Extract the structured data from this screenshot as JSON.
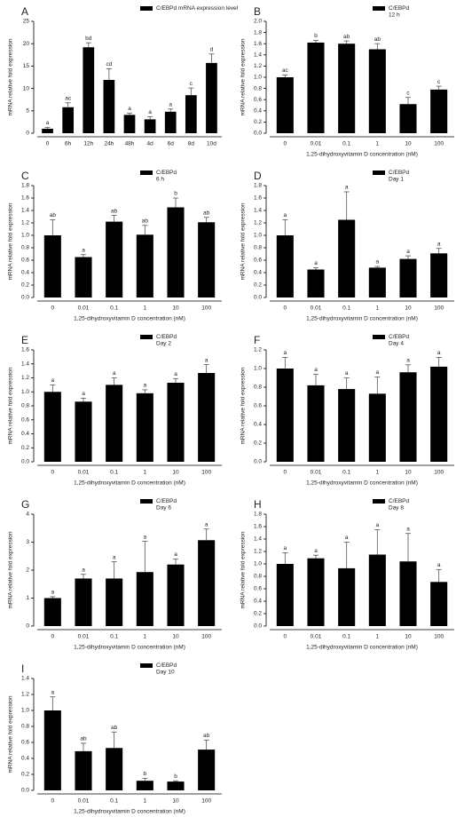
{
  "chart_data": [
    {
      "type": "bar",
      "panel_label": "A",
      "ylabel": "mRNA relative fold expression",
      "categories": [
        "0",
        "6h",
        "12h",
        "24h",
        "48h",
        "4d",
        "6d",
        "8d",
        "10d"
      ],
      "series": [
        {
          "name": "C/EBPd mRNA expression level",
          "color": "#000000",
          "values": [
            1,
            5.8,
            19.2,
            11.9,
            4.1,
            3.1,
            4.8,
            8.5,
            15.7
          ],
          "errors": [
            0.3,
            1.0,
            1.0,
            2.5,
            0.4,
            0.6,
            0.6,
            1.6,
            2.0
          ],
          "labels": [
            "a",
            "ac",
            "bd",
            "cd",
            "a",
            "a",
            "a",
            "c",
            "d"
          ]
        }
      ],
      "ylim": [
        0,
        25
      ],
      "yticks": [
        0,
        5,
        10,
        15,
        20,
        25
      ]
    },
    {
      "type": "bar",
      "panel_label": "B",
      "ylabel": "mRNA relative fold expression",
      "xlabel": "1,25-dihydroxyvitamin D concentration (nM)",
      "legend_note": "12 h",
      "categories": [
        "0",
        "0.01",
        "0.1",
        "1",
        "10",
        "100"
      ],
      "series": [
        {
          "name": "C/EBPd",
          "color": "#000000",
          "values": [
            1.0,
            1.62,
            1.6,
            1.5,
            0.52,
            0.78
          ],
          "errors": [
            0.04,
            0.04,
            0.05,
            0.1,
            0.12,
            0.06
          ],
          "labels": [
            "ac",
            "b",
            "ab",
            "ab",
            "c",
            "c"
          ]
        }
      ],
      "ylim": [
        0,
        2
      ],
      "yticks": [
        {
          "value": 0,
          "label": "0.0"
        },
        0.2,
        0.4,
        0.6,
        0.8,
        {
          "value": 1,
          "label": "1.0"
        },
        1.2,
        1.4,
        1.6,
        1.8,
        {
          "value": 2,
          "label": "2.0"
        }
      ]
    },
    {
      "type": "bar",
      "panel_label": "C",
      "ylabel": "mRNA relative fold expression",
      "xlabel": "1,25-dihydroxyvitamin D concentration (nM)",
      "legend_note": "6 h",
      "categories": [
        "0",
        "0.01",
        "0.1",
        "1",
        "10",
        "100"
      ],
      "series": [
        {
          "name": "C/EBPd",
          "color": "#000000",
          "values": [
            1.0,
            0.65,
            1.22,
            1.01,
            1.45,
            1.21
          ],
          "errors": [
            0.25,
            0.04,
            0.1,
            0.15,
            0.15,
            0.08
          ],
          "labels": [
            "ab",
            "a",
            "ab",
            "ab",
            "b",
            "ab"
          ]
        }
      ],
      "ylim": [
        0,
        1.8
      ],
      "yticks": [
        {
          "value": 0,
          "label": "0.0"
        },
        0.2,
        0.4,
        0.6,
        0.8,
        {
          "value": 1,
          "label": "1.0"
        },
        1.2,
        1.4,
        1.6,
        1.8
      ]
    },
    {
      "type": "bar",
      "panel_label": "D",
      "ylabel": "mRNA relative fold expression",
      "xlabel": "1,25-dihydroxyvitamin D concentration (nM)",
      "legend_note": "Day 1",
      "categories": [
        "0",
        "0.01",
        "0.1",
        "1",
        "10",
        "100"
      ],
      "series": [
        {
          "name": "C/EBPd",
          "color": "#000000",
          "values": [
            1.0,
            0.45,
            1.25,
            0.48,
            0.62,
            0.71
          ],
          "errors": [
            0.25,
            0.03,
            0.45,
            0.02,
            0.05,
            0.08
          ],
          "labels": [
            "a",
            "a",
            "a",
            "a",
            "a",
            "a"
          ]
        }
      ],
      "ylim": [
        0,
        1.8
      ],
      "yticks": [
        {
          "value": 0,
          "label": "0.0"
        },
        0.2,
        0.4,
        0.6,
        0.8,
        {
          "value": 1,
          "label": "1.0"
        },
        1.2,
        1.4,
        1.6,
        1.8
      ]
    },
    {
      "type": "bar",
      "panel_label": "E",
      "ylabel": "mRNA relative fold expression",
      "xlabel": "1,25-dihydroxyvitamin D concentration (nM)",
      "legend_note": "Day 2",
      "categories": [
        "0",
        "0.01",
        "0.1",
        "1",
        "10",
        "100"
      ],
      "series": [
        {
          "name": "C/EBPd",
          "color": "#000000",
          "values": [
            1.0,
            0.86,
            1.1,
            0.98,
            1.13,
            1.27
          ],
          "errors": [
            0.1,
            0.05,
            0.1,
            0.05,
            0.06,
            0.12
          ],
          "labels": [
            "a",
            "a",
            "a",
            "a",
            "a",
            "a"
          ]
        }
      ],
      "ylim": [
        0,
        1.6
      ],
      "yticks": [
        {
          "value": 0,
          "label": "0.0"
        },
        0.2,
        0.4,
        0.6,
        0.8,
        {
          "value": 1,
          "label": "1.0"
        },
        1.2,
        1.4,
        1.6
      ]
    },
    {
      "type": "bar",
      "panel_label": "F",
      "ylabel": "mRNA relative fold expression",
      "xlabel": "1,25-dihydroxyvitamin D concentration (nM)",
      "legend_note": "Day 4",
      "categories": [
        "0",
        "0.01",
        "0.1",
        "1",
        "10",
        "100"
      ],
      "series": [
        {
          "name": "C/EBPd",
          "color": "#000000",
          "values": [
            1.0,
            0.82,
            0.78,
            0.73,
            0.96,
            1.02
          ],
          "errors": [
            0.12,
            0.12,
            0.12,
            0.18,
            0.08,
            0.1
          ],
          "labels": [
            "a",
            "a",
            "a",
            "a",
            "a",
            "a"
          ]
        }
      ],
      "ylim": [
        0,
        1.2
      ],
      "yticks": [
        {
          "value": 0,
          "label": "0.0"
        },
        0.2,
        0.4,
        0.6,
        0.8,
        {
          "value": 1,
          "label": "1.0"
        },
        1.2
      ]
    },
    {
      "type": "bar",
      "panel_label": "G",
      "ylabel": "mRNA relative fold expression",
      "xlabel": "1,25-dihydroxyvitamin D concentration (nM)",
      "legend_note": "Day 6",
      "categories": [
        "0",
        "0.01",
        "0.1",
        "1",
        "10",
        "100"
      ],
      "series": [
        {
          "name": "C/EBPd",
          "color": "#000000",
          "values": [
            1.0,
            1.7,
            1.7,
            1.93,
            2.2,
            3.07
          ],
          "errors": [
            0.05,
            0.15,
            0.6,
            1.1,
            0.2,
            0.4
          ],
          "labels": [
            "a",
            "a",
            "a",
            "a",
            "a",
            "a"
          ]
        }
      ],
      "ylim": [
        0,
        4
      ],
      "yticks": [
        0,
        1,
        2,
        3,
        4
      ]
    },
    {
      "type": "bar",
      "panel_label": "H",
      "ylabel": "mRNA relative fold expression",
      "xlabel": "1,25-dihydroxyvitamin D concentration (nM)",
      "legend_note": "Day 8",
      "categories": [
        "0",
        "0.01",
        "0.1",
        "1",
        "10",
        "100"
      ],
      "series": [
        {
          "name": "C/EBPd",
          "color": "#000000",
          "values": [
            1.0,
            1.09,
            0.93,
            1.15,
            1.04,
            0.71
          ],
          "errors": [
            0.18,
            0.05,
            0.42,
            0.4,
            0.45,
            0.2
          ],
          "labels": [
            "a",
            "a",
            "a",
            "a",
            "a",
            "a"
          ]
        }
      ],
      "ylim": [
        0,
        1.8
      ],
      "yticks": [
        {
          "value": 0,
          "label": "0.0"
        },
        0.2,
        0.4,
        0.6,
        0.8,
        {
          "value": 1,
          "label": "1.0"
        },
        1.2,
        1.4,
        1.6,
        1.8
      ]
    },
    {
      "type": "bar",
      "panel_label": "I",
      "ylabel": "mRNA relative fold expression",
      "xlabel": "1,25-dihydroxyvitamin D concentration (nM)",
      "legend_note": "Day 10",
      "categories": [
        "0",
        "0.01",
        "0.1",
        "1",
        "10",
        "100"
      ],
      "series": [
        {
          "name": "C/EBPd",
          "color": "#000000",
          "values": [
            1.0,
            0.49,
            0.53,
            0.12,
            0.11,
            0.51
          ],
          "errors": [
            0.17,
            0.1,
            0.2,
            0.03,
            0.01,
            0.12
          ],
          "labels": [
            "a",
            "ab",
            "ab",
            "b",
            "b",
            "ab"
          ]
        }
      ],
      "ylim": [
        0,
        1.4
      ],
      "yticks": [
        {
          "value": 0,
          "label": "0.0"
        },
        0.2,
        0.4,
        0.6,
        0.8,
        {
          "value": 1,
          "label": "1.0"
        },
        1.2,
        1.4
      ]
    }
  ]
}
